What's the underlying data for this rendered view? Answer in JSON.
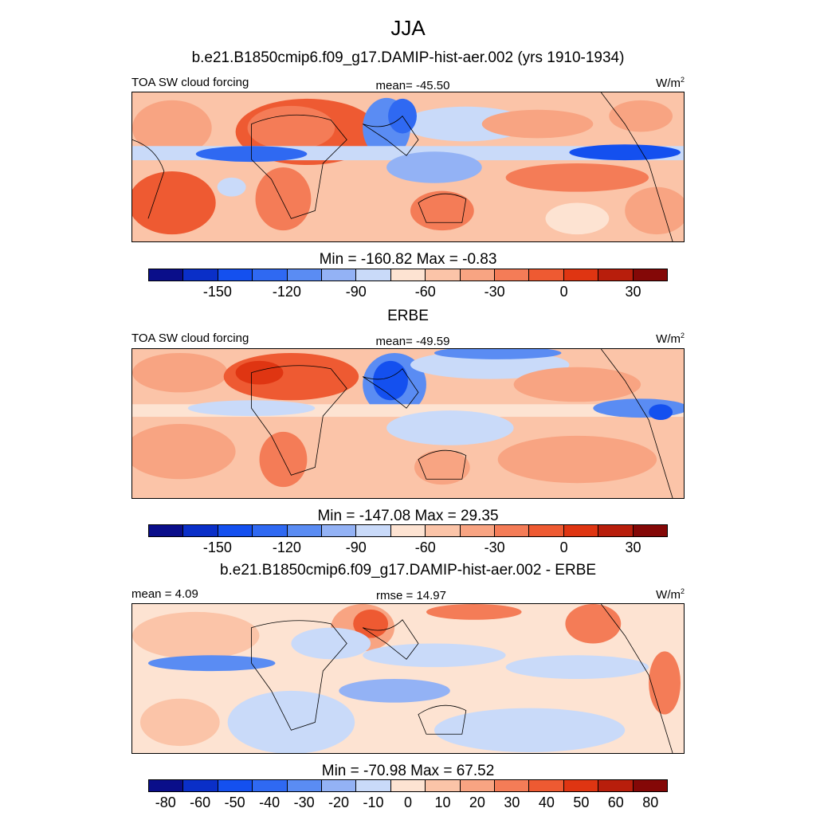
{
  "figure": {
    "season": "JJA",
    "unit_base": "W/m",
    "unit_exp": "2"
  },
  "palette": [
    "#0a0e8a",
    "#0a2fc8",
    "#1450ef",
    "#2f69f2",
    "#5a8cf3",
    "#93b2f5",
    "#c9daf9",
    "#fde3d2",
    "#fbc4a8",
    "#f8a482",
    "#f47c57",
    "#ee5a32",
    "#df3512",
    "#b81e0c",
    "#840807"
  ],
  "chart_data": [
    {
      "type": "heatmap",
      "title": "b.e21.B1850cmip6.f09_g17.DAMIP-hist-aer.002 (yrs 1910-1934)",
      "left_label": "TOA SW cloud forcing",
      "center_label": "mean= -45.50",
      "min_max": "Min = -160.82 Max =  -0.83",
      "colorbar_ticks": [
        "-150",
        "-120",
        "-90",
        "-60",
        "-30",
        "0",
        "30"
      ],
      "stats": {
        "mean": -45.5,
        "min": -160.82,
        "max": -0.83
      }
    },
    {
      "type": "heatmap",
      "title": "ERBE",
      "left_label": "TOA SW cloud forcing",
      "center_label": "mean= -49.59",
      "min_max": "Min = -147.08 Max =  29.35",
      "colorbar_ticks": [
        "-150",
        "-120",
        "-90",
        "-60",
        "-30",
        "0",
        "30"
      ],
      "stats": {
        "mean": -49.59,
        "min": -147.08,
        "max": 29.35
      }
    },
    {
      "type": "heatmap",
      "title": "b.e21.B1850cmip6.f09_g17.DAMIP-hist-aer.002 - ERBE",
      "left_label": "mean =   4.09",
      "center_label": "rmse =  14.97",
      "min_max": "Min = -70.98 Max =  67.52",
      "colorbar_ticks": [
        "-80",
        "-60",
        "-50",
        "-40",
        "-30",
        "-20",
        "-10",
        "0",
        "10",
        "20",
        "30",
        "40",
        "50",
        "60",
        "80"
      ],
      "stats": {
        "mean": 4.09,
        "rmse": 14.97,
        "min": -70.98,
        "max": 67.52
      }
    }
  ]
}
